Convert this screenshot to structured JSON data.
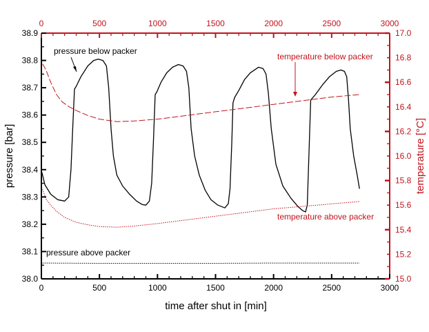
{
  "chart_data": {
    "type": "line",
    "title": "",
    "xlabel": "time after shut in [min]",
    "ylabel": "pressure [bar]",
    "y2label": "temperature [°C]",
    "xlim": [
      0,
      3000
    ],
    "ylim": [
      38.0,
      38.9
    ],
    "y2lim": [
      15.0,
      17.0
    ],
    "x_ticks": [
      "0",
      "500",
      "1000",
      "1500",
      "2000",
      "2500",
      "3000"
    ],
    "x_top_ticks": [
      "0",
      "500",
      "1000",
      "1500",
      "2000",
      "2500",
      "3000"
    ],
    "y_ticks": [
      "38.0",
      "38.1",
      "38.2",
      "38.3",
      "38.4",
      "38.5",
      "38.6",
      "38.7",
      "38.8",
      "38.9"
    ],
    "y2_ticks": [
      "15.0",
      "15.2",
      "15.4",
      "15.6",
      "15.8",
      "16.0",
      "16.2",
      "16.4",
      "16.6",
      "16.8",
      "17.0"
    ],
    "grid": false,
    "colors": {
      "pressure": "#000000",
      "temperature": "#c0141c",
      "temp_axis": "#c0141c"
    },
    "series": [
      {
        "name": "pressure below packer",
        "axis": "left",
        "style": "solid",
        "color": "#000000",
        "x": [
          5,
          30,
          80,
          140,
          200,
          235,
          255,
          270,
          285,
          300,
          340,
          400,
          450,
          490,
          530,
          560,
          580,
          600,
          620,
          650,
          700,
          760,
          820,
          870,
          900,
          930,
          950,
          965,
          980,
          995,
          1030,
          1080,
          1130,
          1180,
          1220,
          1250,
          1270,
          1290,
          1320,
          1360,
          1410,
          1460,
          1520,
          1580,
          1610,
          1625,
          1640,
          1650,
          1665,
          1700,
          1750,
          1800,
          1870,
          1910,
          1935,
          1955,
          1980,
          2020,
          2080,
          2150,
          2210,
          2250,
          2275,
          2290,
          2300,
          2320,
          2360,
          2420,
          2480,
          2540,
          2580,
          2610,
          2630,
          2645,
          2660,
          2690,
          2720,
          2740
        ],
        "y": [
          38.39,
          38.345,
          38.31,
          38.29,
          38.285,
          38.3,
          38.4,
          38.55,
          38.695,
          38.705,
          38.74,
          38.78,
          38.8,
          38.805,
          38.8,
          38.78,
          38.7,
          38.55,
          38.45,
          38.38,
          38.34,
          38.31,
          38.285,
          38.272,
          38.27,
          38.285,
          38.35,
          38.5,
          38.675,
          38.685,
          38.72,
          38.755,
          38.775,
          38.785,
          38.78,
          38.76,
          38.7,
          38.55,
          38.45,
          38.38,
          38.325,
          38.29,
          38.27,
          38.26,
          38.275,
          38.33,
          38.5,
          38.645,
          38.665,
          38.69,
          38.73,
          38.755,
          38.775,
          38.77,
          38.75,
          38.68,
          38.55,
          38.42,
          38.34,
          38.295,
          38.265,
          38.25,
          38.245,
          38.27,
          38.4,
          38.655,
          38.675,
          38.71,
          38.74,
          38.76,
          38.765,
          38.76,
          38.74,
          38.66,
          38.55,
          38.45,
          38.38,
          38.33
        ]
      },
      {
        "name": "pressure above packer",
        "axis": "left",
        "style": "dotted",
        "color": "#000000",
        "x": [
          10,
          500,
          1000,
          1500,
          2000,
          2500,
          2740
        ],
        "y": [
          38.058,
          38.057,
          38.057,
          38.057,
          38.058,
          38.058,
          38.058
        ]
      },
      {
        "name": "temperature below packer",
        "axis": "right",
        "style": "dashed",
        "color": "#c0141c",
        "x": [
          10,
          40,
          80,
          130,
          180,
          240,
          300,
          400,
          500,
          650,
          800,
          1000,
          1250,
          1500,
          1750,
          2000,
          2250,
          2500,
          2740
        ],
        "y": [
          16.75,
          16.7,
          16.6,
          16.5,
          16.44,
          16.4,
          16.37,
          16.33,
          16.3,
          16.28,
          16.285,
          16.3,
          16.33,
          16.36,
          16.39,
          16.42,
          16.45,
          16.48,
          16.5
        ]
      },
      {
        "name": "temperature above packer",
        "axis": "right",
        "style": "dotted",
        "color": "#c0141c",
        "x": [
          10,
          40,
          80,
          130,
          200,
          300,
          400,
          500,
          650,
          800,
          1000,
          1250,
          1500,
          1750,
          2000,
          2250,
          2500,
          2740
        ],
        "y": [
          15.73,
          15.65,
          15.6,
          15.55,
          15.5,
          15.46,
          15.44,
          15.425,
          15.42,
          15.43,
          15.45,
          15.48,
          15.51,
          15.54,
          15.57,
          15.59,
          15.61,
          15.63
        ]
      }
    ],
    "annotations": [
      {
        "text": "pressure below packer",
        "color": "#000000",
        "arrow": true,
        "points_to_x": 290,
        "points_to_y": 38.72,
        "axis": "left"
      },
      {
        "text": "temperature below packer",
        "color": "#c0141c",
        "arrow": true,
        "points_to_x": 2180,
        "points_to_y": 16.45,
        "axis": "right"
      },
      {
        "text": "temperature above packer",
        "color": "#c0141c",
        "arrow": false
      },
      {
        "text": "pressure above packer",
        "color": "#000000",
        "arrow": false
      }
    ]
  }
}
